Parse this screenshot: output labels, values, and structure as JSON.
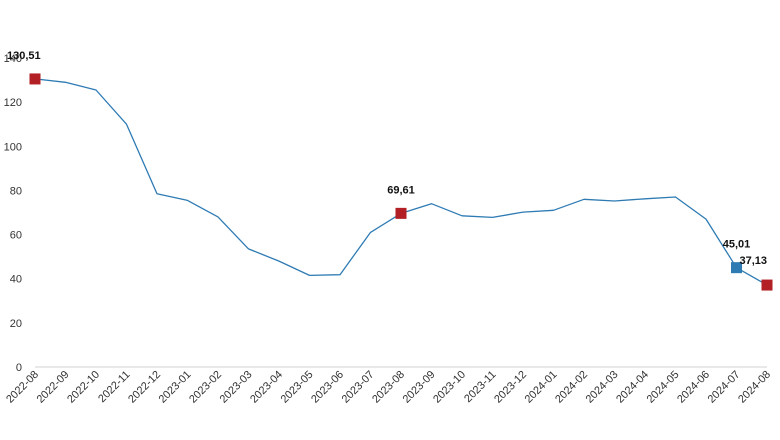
{
  "chart_data": {
    "type": "line",
    "title": "",
    "xlabel": "",
    "ylabel": "",
    "ylim": [
      0,
      140
    ],
    "yticks": [
      0,
      20,
      40,
      60,
      80,
      100,
      120,
      140
    ],
    "grid": false,
    "legend": "none",
    "x": [
      "2022-08",
      "2022-09",
      "2022-10",
      "2022-11",
      "2022-12",
      "2023-01",
      "2023-02",
      "2023-03",
      "2023-04",
      "2023-05",
      "2023-06",
      "2023-07",
      "2023-08",
      "2023-09",
      "2023-10",
      "2023-11",
      "2023-12",
      "2024-01",
      "2024-02",
      "2024-03",
      "2024-04",
      "2024-05",
      "2024-06",
      "2024-07",
      "2024-08"
    ],
    "series": [
      {
        "values": [
          130.51,
          129.0,
          125.5,
          110.0,
          78.5,
          75.5,
          68.0,
          53.5,
          48.0,
          41.5,
          41.8,
          61.0,
          69.61,
          74.0,
          68.5,
          67.8,
          70.2,
          71.0,
          76.0,
          75.2,
          76.2,
          77.0,
          67.0,
          45.01,
          37.13
        ],
        "color": "#2e7bb4"
      }
    ],
    "highlights": [
      {
        "x": "2022-08",
        "value": 130.51,
        "label": "130,51",
        "color": "#b21f24"
      },
      {
        "x": "2023-08",
        "value": 69.61,
        "label": "69,61",
        "color": "#b21f24"
      },
      {
        "x": "2024-07",
        "value": 45.01,
        "label": "45,01",
        "color": "#2e7bb4"
      },
      {
        "x": "2024-08",
        "value": 37.13,
        "label": "37,13",
        "color": "#b21f24"
      }
    ]
  }
}
